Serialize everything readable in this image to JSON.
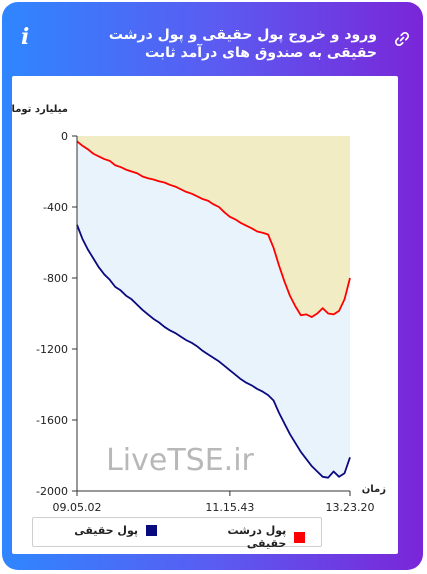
{
  "header": {
    "title": "ورود و خروج پول حقیقی و پول درشت حقیقی به صندوق های درآمد ثابت",
    "info_icon": "info-icon",
    "link_icon": "link-icon"
  },
  "watermark": "LiveTSE.ir",
  "colors": {
    "real_money": "#0a0a80",
    "large_real_money": "#ff0000",
    "fill_between": "#f1ecc4",
    "fill_below": "#e9f3fb",
    "accent_left": "#2f86ff",
    "accent_right": "#7a26d8"
  },
  "chart_data": {
    "type": "line",
    "ylabel": "میلیارد تومان",
    "xlabel": "زمان",
    "ylim": [
      -2000,
      0
    ],
    "yticks": [
      0,
      -400,
      -800,
      -1200,
      -1600,
      -2000
    ],
    "ytick_labels": [
      "0",
      "-400",
      "-800",
      "-1200",
      "-1600",
      "-2000"
    ],
    "xlim": [
      0,
      100
    ],
    "xticks": [
      0,
      56,
      100
    ],
    "xtick_labels": [
      "09.05.02",
      "11.15.43",
      "13.23.20"
    ],
    "x": [
      0,
      2,
      4,
      6,
      8,
      10,
      12,
      14,
      16,
      18,
      20,
      22,
      24,
      26,
      28,
      30,
      32,
      34,
      36,
      38,
      40,
      42,
      44,
      46,
      48,
      50,
      52,
      54,
      56,
      58,
      60,
      62,
      64,
      66,
      68,
      70,
      72,
      74,
      76,
      78,
      80,
      82,
      84,
      86,
      88,
      90,
      92,
      94,
      96,
      98,
      100
    ],
    "series": [
      {
        "name": "پول درشت حقیقی",
        "color": "#ff0000",
        "values": [
          -30,
          -55,
          -75,
          -100,
          -115,
          -130,
          -140,
          -165,
          -175,
          -190,
          -200,
          -210,
          -228,
          -238,
          -245,
          -255,
          -262,
          -275,
          -285,
          -300,
          -315,
          -325,
          -340,
          -355,
          -365,
          -385,
          -400,
          -430,
          -455,
          -470,
          -490,
          -505,
          -520,
          -538,
          -545,
          -555,
          -630,
          -730,
          -820,
          -900,
          -960,
          -1010,
          -1005,
          -1020,
          -1000,
          -970,
          -1000,
          -1005,
          -985,
          -920,
          -800
        ]
      },
      {
        "name": "پول حقیقی",
        "color": "#0a0a80",
        "values": [
          -500,
          -580,
          -640,
          -690,
          -740,
          -780,
          -810,
          -850,
          -870,
          -900,
          -920,
          -950,
          -980,
          -1005,
          -1030,
          -1050,
          -1075,
          -1095,
          -1110,
          -1130,
          -1150,
          -1165,
          -1185,
          -1210,
          -1230,
          -1250,
          -1270,
          -1295,
          -1320,
          -1345,
          -1370,
          -1390,
          -1405,
          -1425,
          -1440,
          -1460,
          -1490,
          -1560,
          -1620,
          -1680,
          -1730,
          -1780,
          -1820,
          -1860,
          -1890,
          -1920,
          -1925,
          -1890,
          -1920,
          -1900,
          -1810
        ]
      }
    ],
    "legend": [
      "پول حقیقی",
      "پول درشت حقیقی"
    ],
    "legend_position": "bottom"
  }
}
